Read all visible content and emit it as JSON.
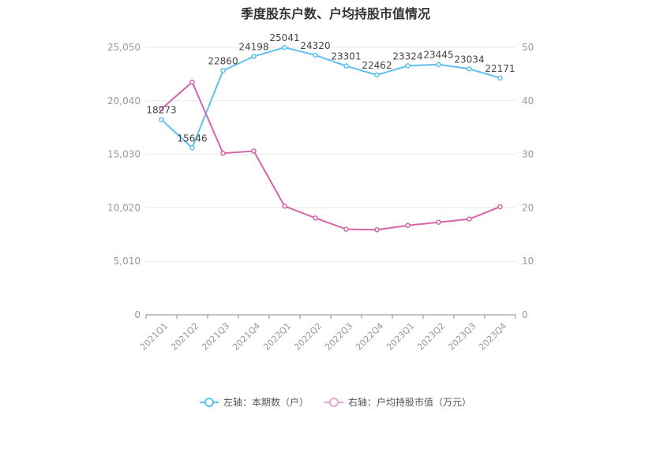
{
  "chart_data": {
    "type": "line",
    "title": "季度股东户数、户均持股市值情况",
    "categories": [
      "2021Q1",
      "2021Q2",
      "2021Q3",
      "2021Q4",
      "2022Q1",
      "2022Q2",
      "2022Q3",
      "2022Q4",
      "2023Q1",
      "2023Q2",
      "2023Q3",
      "2023Q4"
    ],
    "y_left": {
      "ticks": [
        "0",
        "5,010",
        "10,020",
        "15,030",
        "20,040",
        "25,050"
      ],
      "range": [
        0,
        25050
      ]
    },
    "y_right": {
      "ticks": [
        "0",
        "10",
        "20",
        "30",
        "40",
        "50"
      ],
      "range": [
        0,
        50
      ]
    },
    "series": [
      {
        "name": "左轴：本期数（户）",
        "axis": "left",
        "color": "#5bc0f0",
        "values": [
          18273,
          15646,
          22860,
          24198,
          25041,
          24320,
          23301,
          22462,
          23324,
          23445,
          23034,
          22171
        ],
        "labels": [
          "18273",
          "15646",
          "22860",
          "24198",
          "25041",
          "24320",
          "23301",
          "22462",
          "23324",
          "23445",
          "23034",
          "22171"
        ]
      },
      {
        "name": "右轴：户均持股市值（万元）",
        "axis": "right",
        "color": "#d466a8",
        "values": [
          38.5,
          43.5,
          30.2,
          30.6,
          20.3,
          18.1,
          16.0,
          15.9,
          16.7,
          17.3,
          17.9,
          20.2
        ]
      }
    ],
    "grid": true,
    "legend_position": "bottom"
  }
}
